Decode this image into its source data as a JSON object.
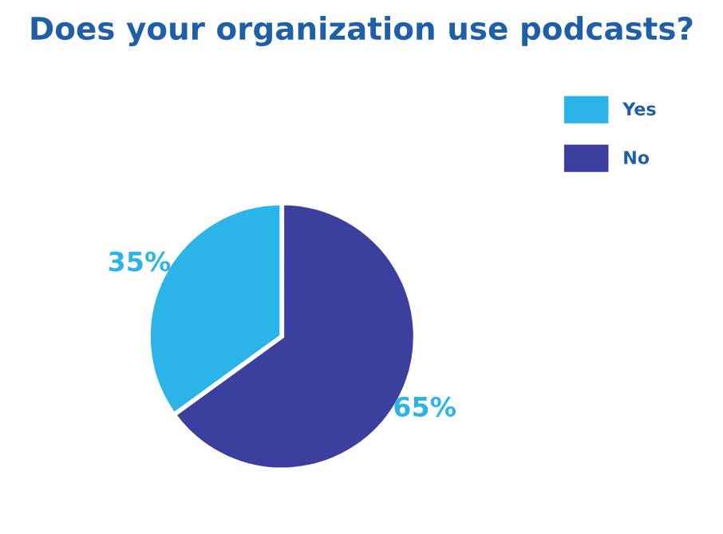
{
  "chart_data": {
    "type": "pie",
    "title": "Does your organization use podcasts?",
    "categories": [
      "Yes",
      "No"
    ],
    "values": [
      35,
      65
    ],
    "colors": [
      "#2bb4e8",
      "#3b3f9e"
    ],
    "value_labels": [
      "35%",
      "65%"
    ],
    "legend": "top right"
  }
}
